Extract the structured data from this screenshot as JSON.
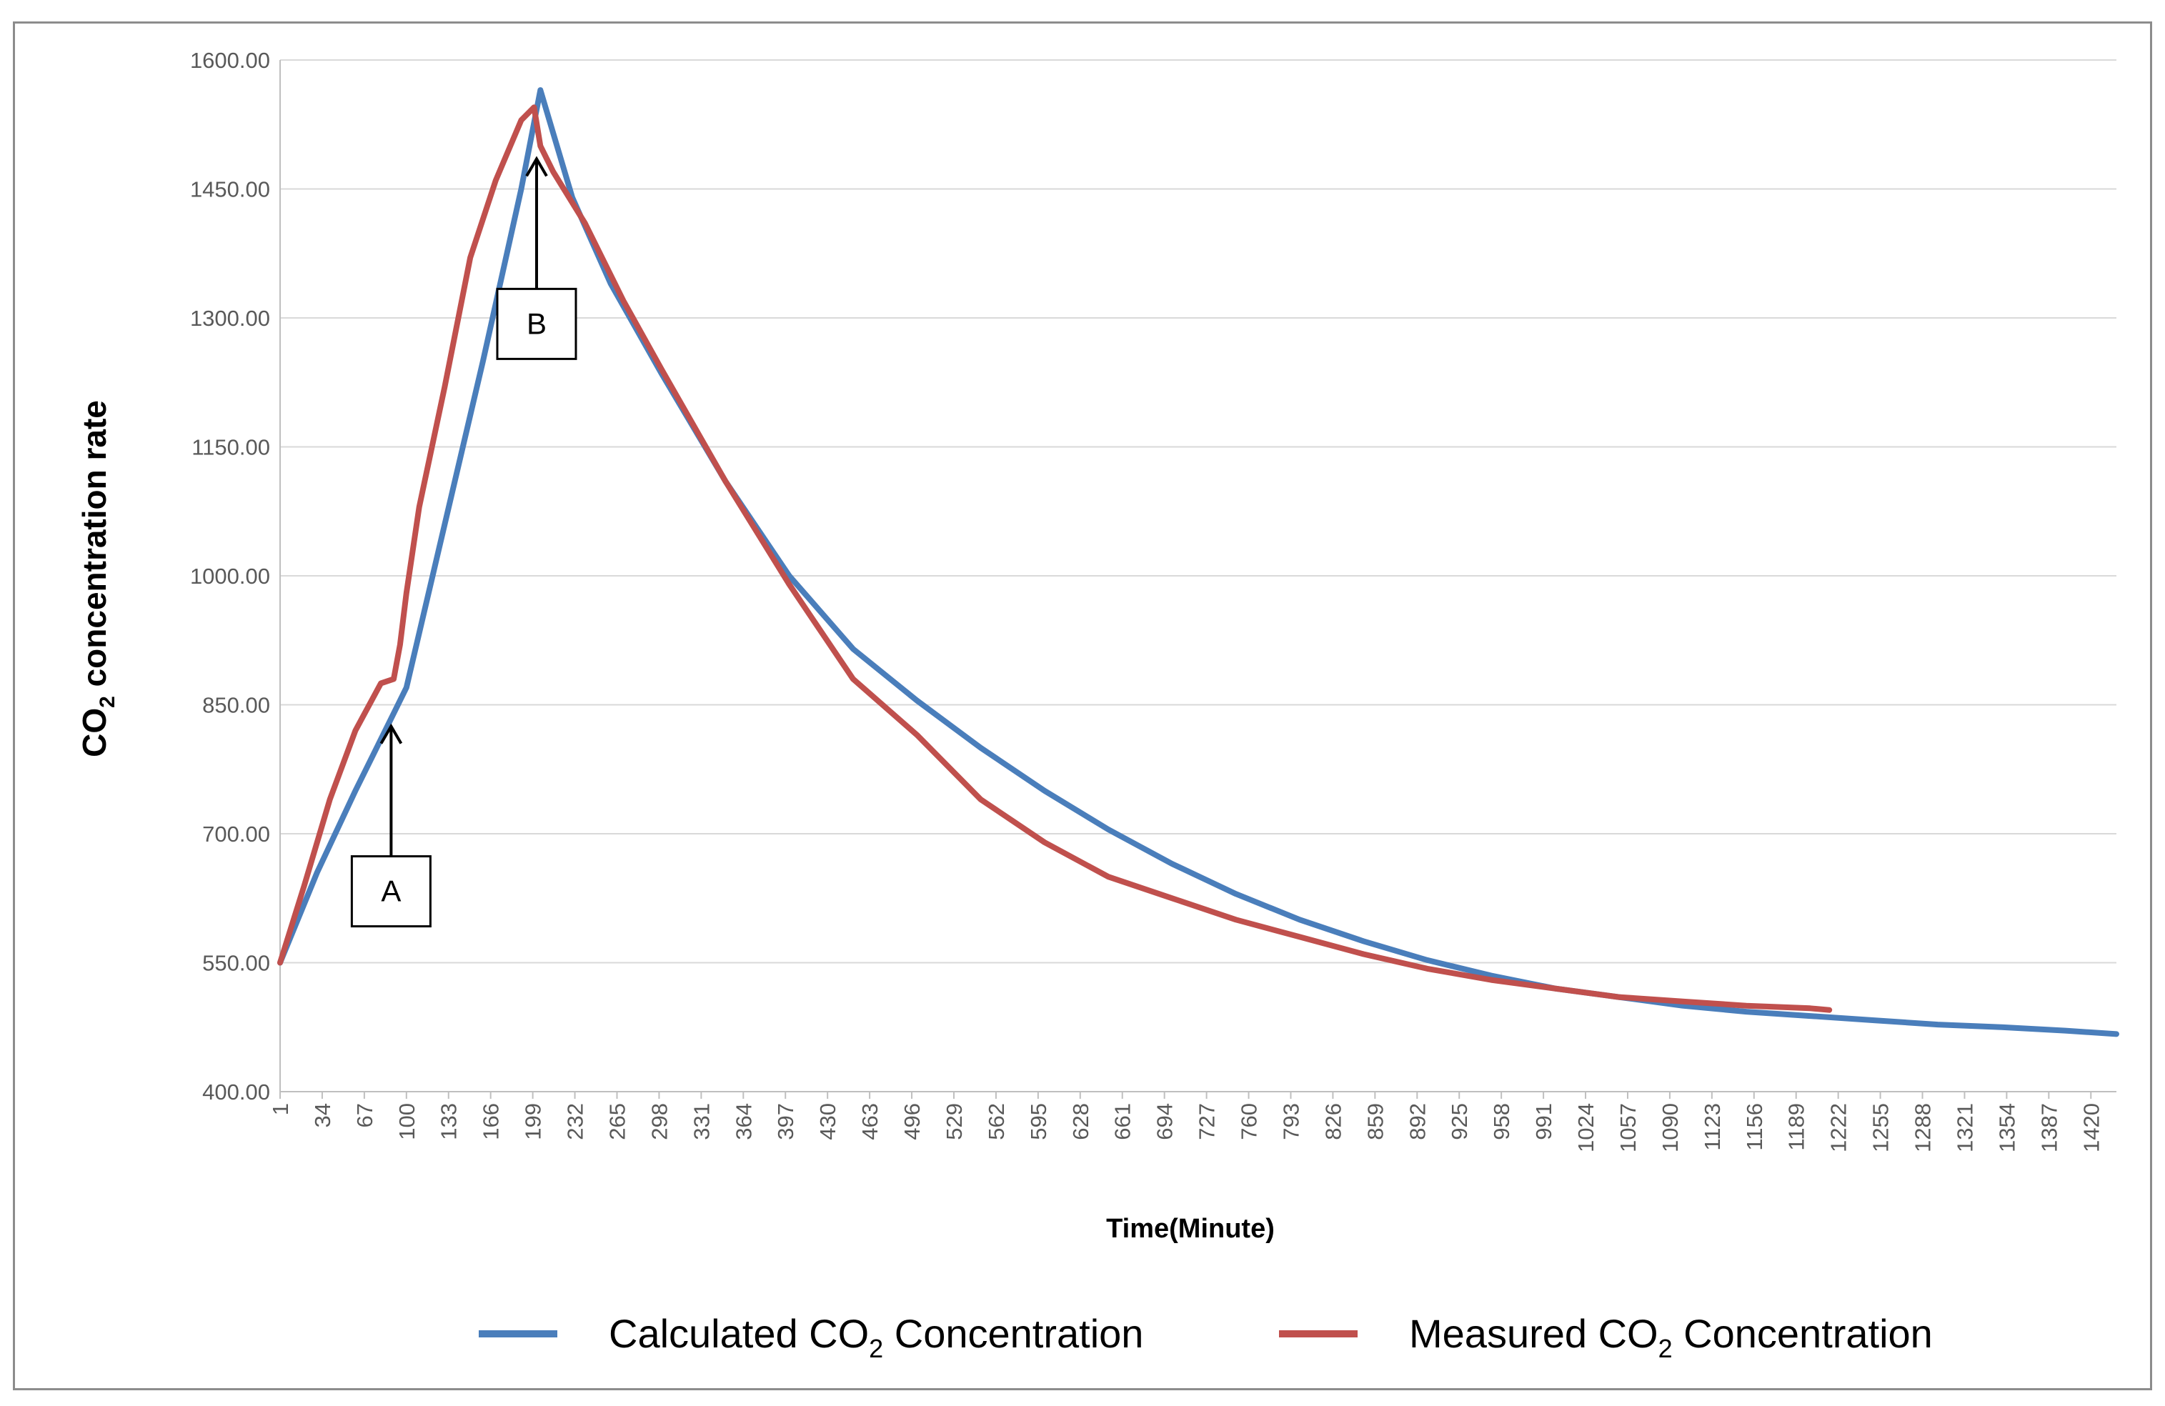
{
  "chart_data": {
    "type": "line",
    "title": "",
    "xlabel": "Time(Minute)",
    "ylabel_main": "CO",
    "ylabel_sub": "2",
    "ylabel_rest": " concentration rate",
    "xlim": [
      1,
      1440
    ],
    "ylim": [
      400,
      1600
    ],
    "y_ticks": [
      400,
      550,
      700,
      850,
      1000,
      1150,
      1300,
      1450,
      1600
    ],
    "y_tick_labels": [
      "400.00",
      "550.00",
      "700.00",
      "850.00",
      "1000.00",
      "1150.00",
      "1300.00",
      "1450.00",
      "1600.00"
    ],
    "x_ticks": [
      1,
      34,
      67,
      100,
      133,
      166,
      199,
      232,
      265,
      298,
      331,
      364,
      397,
      430,
      463,
      496,
      529,
      562,
      595,
      628,
      661,
      694,
      727,
      760,
      793,
      826,
      859,
      892,
      925,
      958,
      991,
      1024,
      1057,
      1090,
      1123,
      1156,
      1189,
      1222,
      1255,
      1288,
      1321,
      1354,
      1387,
      1420
    ],
    "x_tick_labels": [
      "1",
      "34",
      "67",
      "100",
      "133",
      "166",
      "199",
      "232",
      "265",
      "298",
      "331",
      "364",
      "397",
      "430",
      "463",
      "496",
      "529",
      "562",
      "595",
      "628",
      "661",
      "694",
      "727",
      "760",
      "793",
      "826",
      "859",
      "892",
      "925",
      "958",
      "991",
      "1024",
      "1057",
      "1090",
      "1123",
      "1156",
      "1189",
      "1222",
      "1255",
      "1288",
      "1321",
      "1354",
      "1387",
      "1420"
    ],
    "grid": true,
    "legend_position": "bottom",
    "series": [
      {
        "name": "Calculated CO2 Concentration",
        "label_main": "Calculated CO",
        "label_sub": "2",
        "label_rest": " Concentration",
        "color": "#4a7ebb",
        "x": [
          1,
          30,
          60,
          90,
          100,
          130,
          160,
          190,
          205,
          230,
          260,
          300,
          350,
          400,
          450,
          500,
          550,
          600,
          650,
          700,
          750,
          800,
          850,
          900,
          950,
          1000,
          1050,
          1100,
          1150,
          1200,
          1250,
          1300,
          1350,
          1400,
          1440
        ],
        "y": [
          550,
          655,
          750,
          840,
          870,
          1060,
          1250,
          1450,
          1565,
          1440,
          1340,
          1235,
          1110,
          1000,
          915,
          855,
          800,
          750,
          705,
          665,
          630,
          600,
          575,
          553,
          535,
          520,
          510,
          500,
          493,
          488,
          483,
          478,
          475,
          471,
          467
        ]
      },
      {
        "name": "Measured CO2 Concentration",
        "label_main": "Measured CO",
        "label_sub": "2",
        "label_rest": " Concentration",
        "color": "#c0504d",
        "x": [
          1,
          20,
          40,
          60,
          80,
          90,
          95,
          100,
          110,
          130,
          150,
          170,
          190,
          200,
          205,
          215,
          240,
          270,
          300,
          350,
          400,
          450,
          500,
          550,
          600,
          650,
          700,
          750,
          800,
          850,
          900,
          950,
          1000,
          1050,
          1100,
          1150,
          1200,
          1215
        ],
        "y": [
          550,
          640,
          740,
          820,
          875,
          880,
          920,
          980,
          1080,
          1220,
          1370,
          1460,
          1530,
          1545,
          1500,
          1470,
          1410,
          1320,
          1240,
          1110,
          990,
          880,
          815,
          740,
          690,
          650,
          625,
          600,
          580,
          560,
          543,
          530,
          520,
          510,
          505,
          500,
          497,
          495
        ]
      }
    ],
    "annotations": [
      {
        "label": "A",
        "x": 88,
        "y": 825
      },
      {
        "label": "B",
        "x": 202,
        "y": 1485
      }
    ]
  }
}
